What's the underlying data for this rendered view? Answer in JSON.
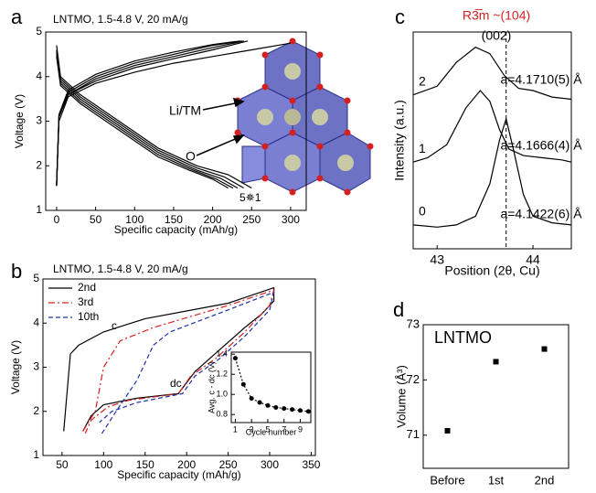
{
  "chart_data": [
    {
      "type": "line",
      "panel": "a",
      "title": "LNTMO, 1.5-4.8 V, 20 mA/g",
      "xlabel": "Specific capacity (mAh/g)",
      "ylabel": "Voltage (V)",
      "xlim": [
        -14,
        320
      ],
      "ylim": [
        1,
        5
      ],
      "xticks": [
        0,
        50,
        100,
        150,
        200,
        250,
        300
      ],
      "yticks": [
        1,
        2,
        3,
        4,
        5
      ],
      "annotations": [
        "Li/TM",
        "O",
        "5✵1"
      ],
      "series": [
        {
          "color": "#000000",
          "linestyle": "solid",
          "x": [
            0,
            3,
            15,
            50,
            100,
            150,
            200,
            250,
            300
          ],
          "values": [
            1.6,
            3.0,
            3.55,
            3.85,
            4.1,
            4.3,
            4.45,
            4.6,
            4.75
          ]
        },
        {
          "color": "#000000",
          "linestyle": "solid",
          "x": [
            0,
            3,
            15,
            50,
            100,
            150,
            200,
            245
          ],
          "values": [
            1.55,
            3.1,
            3.6,
            3.9,
            4.2,
            4.4,
            4.6,
            4.8
          ]
        },
        {
          "color": "#000000",
          "linestyle": "solid",
          "x": [
            0,
            3,
            15,
            50,
            100,
            150,
            200,
            240
          ],
          "values": [
            1.55,
            3.1,
            3.6,
            3.95,
            4.25,
            4.45,
            4.65,
            4.8
          ]
        },
        {
          "color": "#000000",
          "linestyle": "solid",
          "x": [
            0,
            3,
            15,
            50,
            100,
            150,
            200,
            238
          ],
          "values": [
            1.55,
            3.1,
            3.65,
            4.0,
            4.3,
            4.5,
            4.7,
            4.8
          ]
        },
        {
          "color": "#000000",
          "linestyle": "solid",
          "x": [
            0,
            3,
            15,
            50,
            100,
            150,
            200,
            235
          ],
          "values": [
            1.55,
            3.15,
            3.7,
            4.05,
            4.35,
            4.55,
            4.72,
            4.8
          ]
        },
        {
          "color": "#000000",
          "linestyle": "solid",
          "x": [
            0,
            5,
            30,
            80,
            130,
            180,
            220,
            250
          ],
          "values": [
            4.7,
            4.0,
            3.6,
            3.0,
            2.4,
            2.0,
            1.8,
            1.5
          ]
        },
        {
          "color": "#000000",
          "linestyle": "solid",
          "x": [
            0,
            5,
            30,
            80,
            130,
            180,
            215,
            240
          ],
          "values": [
            4.6,
            3.95,
            3.55,
            2.95,
            2.35,
            1.95,
            1.75,
            1.5
          ]
        },
        {
          "color": "#000000",
          "linestyle": "solid",
          "x": [
            0,
            5,
            30,
            80,
            130,
            180,
            210,
            232
          ],
          "values": [
            4.55,
            3.9,
            3.5,
            2.9,
            2.3,
            1.9,
            1.72,
            1.5
          ]
        },
        {
          "color": "#000000",
          "linestyle": "solid",
          "x": [
            0,
            5,
            30,
            80,
            130,
            175,
            205,
            226
          ],
          "values": [
            4.5,
            3.85,
            3.45,
            2.85,
            2.25,
            1.9,
            1.7,
            1.5
          ]
        },
        {
          "color": "#000000",
          "linestyle": "solid",
          "x": [
            0,
            5,
            30,
            80,
            130,
            170,
            200,
            220
          ],
          "values": [
            4.45,
            3.8,
            3.4,
            2.8,
            2.2,
            1.9,
            1.7,
            1.5
          ]
        }
      ]
    },
    {
      "type": "line",
      "panel": "b",
      "title": "LNTMO, 1.5-4.8 V, 20 mA/g",
      "xlabel": "Specific capacity (mAh/g)",
      "ylabel": "Voltage (V)",
      "xlim": [
        27,
        355
      ],
      "ylim": [
        1,
        5
      ],
      "xticks": [
        50,
        100,
        150,
        200,
        250,
        300,
        350
      ],
      "yticks": [
        1,
        2,
        3,
        4,
        5
      ],
      "legend": "upper left",
      "annotations": [
        "c",
        "dc"
      ],
      "series": [
        {
          "name": "2nd",
          "color": "#000000",
          "linestyle": "solid",
          "x": [
            52,
            60,
            70,
            100,
            150,
            250,
            305,
            305,
            290,
            270,
            240,
            210,
            190,
            140,
            100,
            85,
            75
          ],
          "values": [
            1.55,
            3.3,
            3.5,
            3.8,
            4.1,
            4.45,
            4.8,
            4.5,
            4.2,
            3.9,
            3.4,
            2.9,
            2.4,
            2.3,
            2.15,
            1.9,
            1.55
          ]
        },
        {
          "name": "3rd",
          "color": "#d62020",
          "linestyle": "dashdot",
          "x": [
            75,
            90,
            100,
            120,
            160,
            250,
            305,
            300,
            270,
            235,
            205,
            190,
            130,
            105,
            85,
            78
          ],
          "values": [
            1.55,
            2.0,
            3.0,
            3.6,
            3.9,
            4.4,
            4.75,
            4.4,
            3.8,
            3.2,
            2.8,
            2.4,
            2.25,
            2.1,
            1.8,
            1.5
          ]
        },
        {
          "name": "10th",
          "color": "#1f2fa8",
          "linestyle": "dashed",
          "x": [
            98,
            115,
            140,
            160,
            180,
            250,
            305,
            300,
            270,
            240,
            210,
            195,
            140,
            110,
            95
          ],
          "values": [
            1.5,
            2.0,
            2.7,
            3.5,
            3.8,
            4.3,
            4.7,
            4.3,
            3.7,
            3.2,
            2.8,
            2.4,
            2.2,
            2.0,
            1.75
          ]
        }
      ]
    },
    {
      "type": "line",
      "markers": true,
      "xlabel": "Cycle number",
      "ylabel": "Avg. c - dc (V)",
      "xlim": [
        0.5,
        10.3
      ],
      "ylim": [
        0.72,
        1.42
      ],
      "xticks": [
        1,
        3,
        5,
        7,
        9
      ],
      "yticks": [
        0.8,
        {
          "value": 1.0,
          "label": "1.0"
        },
        1.2,
        1.4
      ],
      "series": [
        {
          "color": "#000000",
          "linestyle": "dotted",
          "x": [
            1,
            2,
            3,
            4,
            5,
            6,
            7,
            8,
            9,
            10
          ],
          "values": [
            1.36,
            1.1,
            0.96,
            0.92,
            0.89,
            0.87,
            0.86,
            0.85,
            0.84,
            0.83
          ]
        }
      ]
    },
    {
      "type": "line",
      "panel": "c",
      "title": "R3̅m ~(104)",
      "subtitle": "(002)",
      "xlabel": "Position (2θ, Cu)",
      "ylabel": "Intensity (a.u.)",
      "xlim": [
        42.75,
        44.4
      ],
      "ylim": [
        0,
        10
      ],
      "xticks": [
        43,
        44
      ],
      "yticks": [],
      "ref_line_x": 43.72,
      "annotations": [
        "a=4.1710(5) Å",
        "a=4.1666(4) Å",
        "a=4.1422(6) Å"
      ],
      "series": [
        {
          "name": "0",
          "color": "#000000",
          "linestyle": "solid",
          "x": [
            42.75,
            43.0,
            43.2,
            43.4,
            43.55,
            43.65,
            43.72,
            43.8,
            43.9,
            44.0,
            44.2,
            44.4
          ],
          "values": [
            1.1,
            1.0,
            1.1,
            1.5,
            3.0,
            5.0,
            6.0,
            4.5,
            2.5,
            1.5,
            1.2,
            1.1
          ]
        },
        {
          "name": "1",
          "color": "#000000",
          "linestyle": "solid",
          "x": [
            42.75,
            42.9,
            43.1,
            43.3,
            43.45,
            43.55,
            43.65,
            43.75,
            43.9,
            44.1,
            44.3,
            44.4
          ],
          "values": [
            4.0,
            4.2,
            4.8,
            6.5,
            7.3,
            6.8,
            5.5,
            4.6,
            4.3,
            4.2,
            4.1,
            4.0
          ]
        },
        {
          "name": "2",
          "color": "#000000",
          "linestyle": "solid",
          "x": [
            42.75,
            43.0,
            43.2,
            43.4,
            43.55,
            43.7,
            43.85,
            44.0,
            44.2,
            44.4
          ],
          "values": [
            7.1,
            7.5,
            8.6,
            9.3,
            9.0,
            8.0,
            7.4,
            7.3,
            7.0,
            6.9
          ]
        }
      ]
    },
    {
      "type": "scatter",
      "panel": "d",
      "ylabel": "Volume (Å³)",
      "annotations": [
        "LNTMO"
      ],
      "categories": [
        "Before",
        "1st",
        "2nd"
      ],
      "values": [
        71.08,
        72.33,
        72.56
      ],
      "color": "#000000",
      "ylim": [
        70.4,
        73
      ],
      "yticks": [
        71,
        72,
        73
      ]
    }
  ]
}
